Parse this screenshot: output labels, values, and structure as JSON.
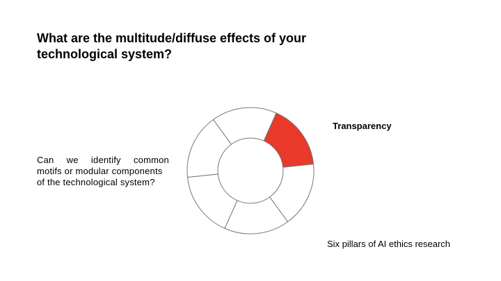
{
  "slide": {
    "title_line1": "What are the multitude/diffuse effects of your",
    "title_line2": "technological system?",
    "question_line1": "Can we identify common",
    "question_line2": "motifs or modular components",
    "question_line3": "of the technological system?",
    "highlighted_pillar": "Transparency",
    "caption": "Six pillars of AI ethics research"
  },
  "diagram": {
    "segments": 6,
    "highlighted_index": 0,
    "highlight_color": "#e8392a",
    "stroke_color": "#777777",
    "fill_color": "#ffffff"
  }
}
